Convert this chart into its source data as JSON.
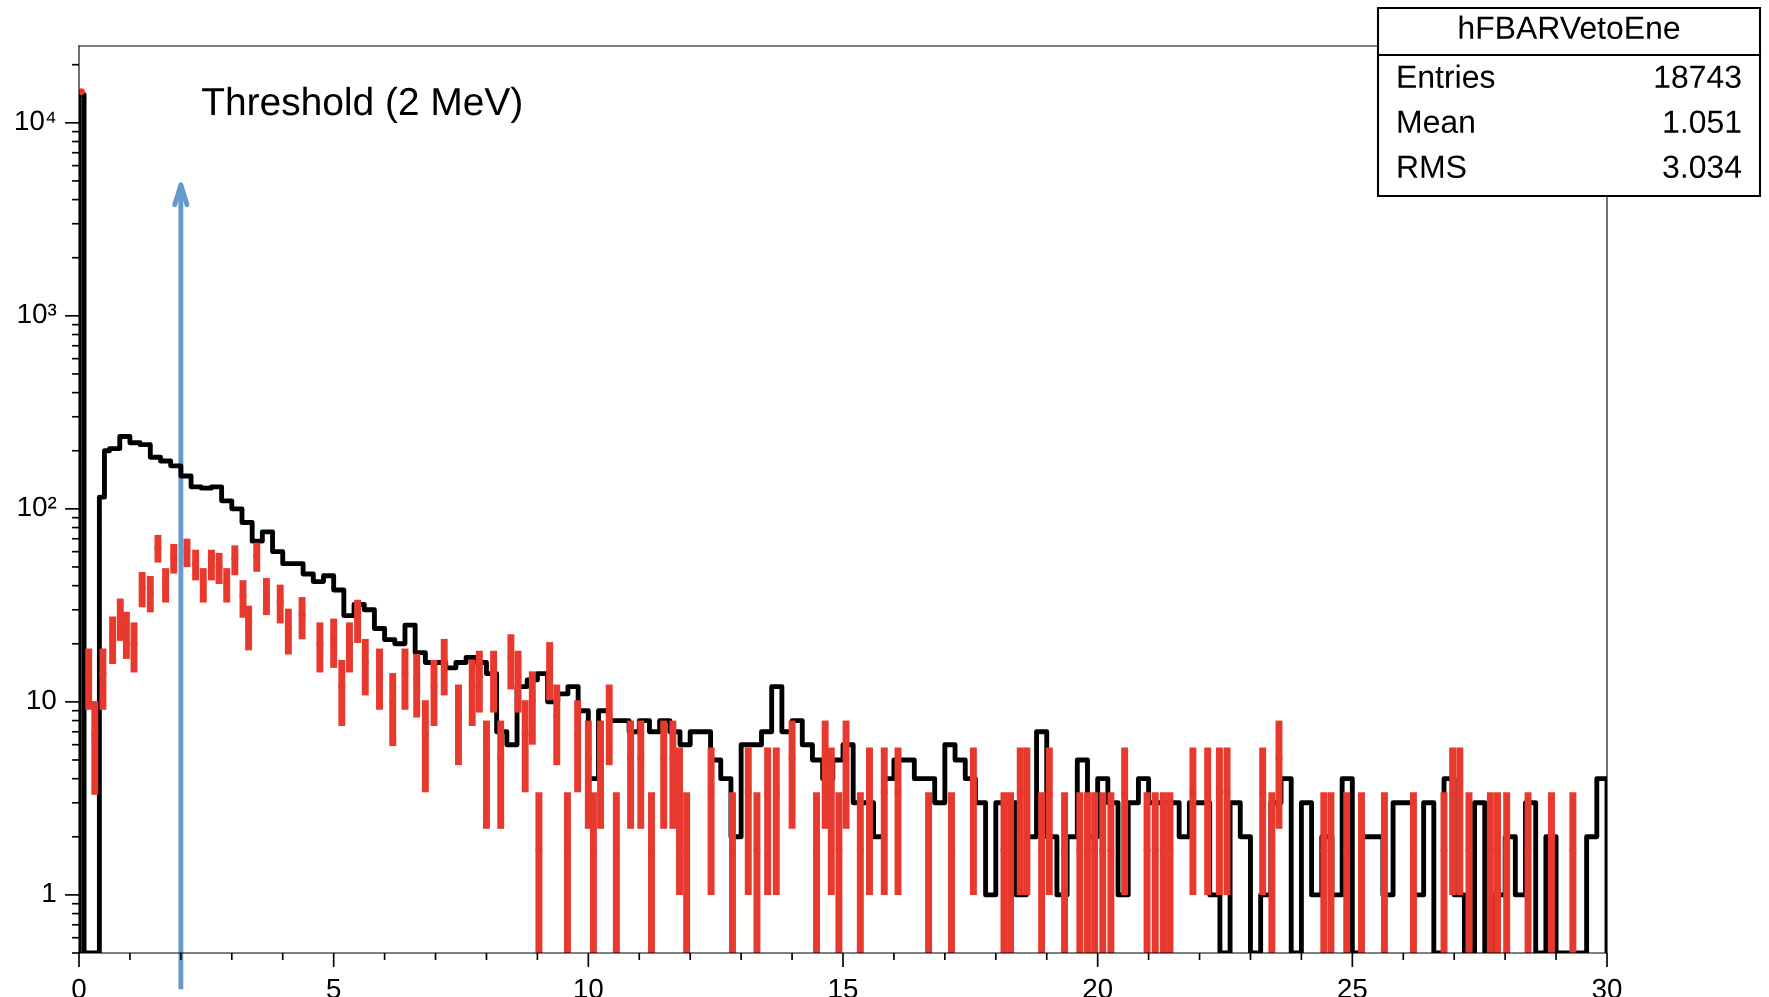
{
  "chart_data": {
    "type": "histogram",
    "bins": [
      0,
      0.1,
      0.2,
      0.3,
      0.4,
      0.5,
      0.6,
      0.7,
      0.8,
      0.9,
      1.0,
      1.2,
      1.4,
      1.6,
      1.8,
      2.0,
      2.2,
      2.4,
      2.6,
      2.8,
      3.0,
      3.2,
      3.4,
      3.6,
      3.8,
      4.0,
      4.2,
      4.4,
      4.6,
      4.8,
      5.0,
      5.2,
      5.4,
      5.6,
      5.8,
      6.0,
      6.2,
      6.4,
      6.6,
      6.8,
      7.0,
      7.2,
      7.4,
      7.6,
      7.8,
      8.0,
      8.2,
      8.4,
      8.6,
      8.8,
      9.0,
      9.2,
      9.4,
      9.6,
      9.8,
      10.0,
      10.2,
      10.4,
      10.6,
      10.8,
      11.0,
      11.2,
      11.4,
      11.6,
      11.8,
      12.0,
      12.2,
      12.4,
      12.6,
      12.8,
      13.0,
      13.2,
      13.4,
      13.6,
      13.8,
      14.0,
      14.2,
      14.4,
      14.6,
      14.8,
      15.0,
      15.2,
      15.4,
      15.6,
      15.8,
      16.0,
      16.2,
      16.4,
      16.6,
      16.8,
      17.0,
      17.2,
      17.4,
      17.6,
      17.8,
      18.0,
      18.2,
      18.4,
      18.6,
      18.8,
      19.0,
      19.2,
      19.4,
      19.6,
      19.8,
      20.0,
      20.2,
      20.4,
      20.6,
      20.8,
      21.0,
      21.2,
      21.4,
      21.6,
      21.8,
      22.0,
      22.2,
      22.4,
      22.6,
      22.8,
      23.0,
      23.2,
      23.4,
      23.6,
      23.8,
      24.0,
      24.2,
      24.4,
      24.6,
      24.8,
      25.0,
      25.2,
      25.4,
      25.6,
      25.8,
      26.0,
      26.2,
      26.4,
      26.6,
      26.8,
      27.0,
      27.2,
      27.4,
      27.6,
      27.8,
      28.0,
      28.2,
      28.4,
      28.6,
      28.8,
      29.0,
      29.2,
      29.4,
      29.6,
      29.8,
      30.0
    ],
    "series": [
      {
        "color": "#000000",
        "values": [
          14000,
          null,
          null,
          null,
          115,
          200,
          205,
          205,
          237,
          237,
          220,
          215,
          185,
          177,
          167,
          148,
          130,
          128,
          130,
          110,
          100,
          85,
          68,
          76,
          60,
          52,
          52,
          46,
          42,
          45,
          38,
          28,
          32,
          30,
          24,
          21,
          20,
          25,
          18,
          16,
          16,
          15,
          16,
          17,
          16,
          14,
          7,
          6,
          12,
          13,
          14,
          10,
          11,
          12,
          9,
          4,
          9,
          8,
          8,
          7,
          8,
          7,
          8,
          7,
          6,
          7,
          7,
          5,
          4,
          2,
          6,
          6,
          7,
          12,
          7,
          8,
          6,
          5,
          4,
          5,
          6,
          3,
          3,
          2,
          4,
          5,
          5,
          4,
          4,
          3,
          6,
          5,
          4,
          3,
          1,
          3,
          3,
          1,
          2,
          7,
          2,
          1,
          2,
          5,
          2,
          4,
          3,
          1,
          3,
          4,
          3,
          3,
          3,
          2,
          3,
          3,
          1,
          null,
          3,
          2,
          null,
          1,
          3,
          4,
          null,
          3,
          1,
          2,
          1,
          4,
          null,
          2,
          2,
          1,
          3,
          3,
          1,
          3,
          null,
          4,
          1,
          null,
          3,
          null,
          1,
          2,
          1,
          3,
          null,
          2,
          null,
          null,
          null,
          2,
          4
        ]
      },
      {
        "type": "scatter",
        "color": "#e8392f",
        "marker": "circle",
        "x": [
          0.05,
          0.19,
          0.31,
          0.47,
          0.66,
          0.81,
          0.93,
          1.08,
          1.24,
          1.4,
          1.55,
          1.7,
          1.86,
          2.12,
          2.29,
          2.44,
          2.6,
          2.75,
          2.9,
          3.06,
          3.22,
          3.33,
          3.49,
          3.68,
          3.95,
          4.11,
          4.38,
          4.73,
          5.0,
          5.16,
          5.31,
          5.47,
          5.62,
          5.9,
          6.16,
          6.4,
          6.63,
          6.8,
          6.97,
          7.17,
          7.45,
          7.72,
          7.86,
          8.0,
          8.14,
          8.28,
          8.48,
          8.62,
          8.76,
          8.9,
          9.03,
          9.24,
          9.38,
          9.59,
          9.79,
          10.0,
          10.1,
          10.24,
          10.41,
          10.55,
          10.83,
          11.03,
          11.24,
          11.48,
          11.66,
          11.79,
          11.93,
          12.41,
          12.83,
          13.14,
          13.31,
          13.52,
          13.69,
          14.0,
          14.48,
          14.65,
          14.77,
          14.92,
          15.06,
          15.34,
          15.52,
          15.81,
          16.08,
          16.68,
          17.13,
          17.56,
          18.16,
          18.29,
          18.48,
          18.61,
          18.9,
          19.05,
          19.35,
          19.65,
          19.8,
          19.94,
          20.1,
          20.26,
          20.53,
          20.97,
          21.13,
          21.29,
          21.42,
          21.87,
          22.16,
          22.39,
          22.54,
          23.24,
          23.42,
          23.56,
          24.44,
          24.58,
          24.89,
          25.18,
          25.63,
          26.2,
          26.8,
          26.97,
          27.11,
          27.29,
          27.71,
          27.85,
          28.03,
          28.45,
          28.91,
          29.33
        ],
        "values": [
          14500,
          14,
          6.7,
          14,
          21.7,
          27.5,
          23,
          20,
          39,
          37,
          63,
          41,
          56,
          60,
          52,
          41,
          52,
          50,
          41,
          55,
          35,
          25,
          57,
          36,
          33,
          24,
          28,
          20,
          21,
          12,
          20,
          27,
          16,
          14,
          10,
          14,
          13,
          6.8,
          12,
          16,
          8.5,
          12,
          13.6,
          5.1,
          13.6,
          5.1,
          17,
          13.6,
          6.8,
          10.2,
          1.7,
          15.3,
          8.5,
          1.7,
          6.8,
          5.1,
          1.7,
          5.1,
          8.5,
          1.7,
          5.1,
          5.1,
          1.7,
          5.1,
          5.1,
          3.4,
          1.7,
          3.4,
          1.7,
          3.4,
          1.7,
          3.4,
          3.4,
          5.1,
          1.7,
          5.1,
          3.4,
          1.7,
          5.1,
          1.7,
          3.4,
          3.4,
          3.4,
          1.7,
          1.7,
          3.4,
          1.7,
          1.7,
          3.4,
          3.4,
          1.7,
          3.4,
          1.7,
          1.7,
          1.7,
          1.7,
          1.7,
          1.7,
          3.4,
          1.7,
          1.7,
          1.7,
          1.7,
          3.4,
          3.4,
          3.4,
          3.4,
          3.4,
          1.7,
          5.1,
          1.7,
          1.7,
          1.7,
          1.7,
          1.7,
          1.7,
          1.7,
          3.4,
          3.4,
          1.7,
          1.7,
          1.7,
          1.7,
          1.7,
          1.7,
          1.7
        ],
        "errors": [
          null,
          4.9,
          3.4,
          4.9,
          6,
          6.8,
          6.3,
          5.8,
          8.1,
          7.9,
          10.3,
          8.3,
          9.8,
          10.1,
          9.4,
          8.3,
          9.4,
          9.2,
          8.3,
          9.7,
          7.7,
          6.5,
          9.8,
          7.8,
          7.5,
          6.4,
          6.9,
          5.8,
          6,
          4.5,
          5.8,
          6.8,
          5.2,
          4.9,
          4.1,
          4.9,
          4.7,
          3.4,
          4.5,
          5.2,
          3.8,
          4.5,
          4.8,
          2.9,
          4.8,
          2.9,
          5.4,
          4.8,
          3.4,
          4.2,
          [
            0.5,
            3.4
          ],
          5.1,
          3.8,
          [
            0.5,
            3.4
          ],
          3.4,
          2.9,
          [
            0.5,
            3.4
          ],
          2.9,
          3.8,
          [
            0.5,
            3.4
          ],
          2.9,
          2.9,
          [
            0.5,
            3.4
          ],
          2.9,
          2.9,
          2.4,
          [
            0.5,
            3.4
          ],
          2.4,
          [
            0.5,
            3.4
          ],
          2.4,
          [
            0.5,
            3.4
          ],
          2.4,
          2.4,
          2.9,
          [
            0.5,
            3.4
          ],
          2.9,
          2.4,
          [
            0.5,
            3.4
          ],
          2.9,
          [
            0.5,
            3.4
          ],
          2.4,
          2.4,
          2.4,
          [
            0.5,
            3.4
          ],
          [
            0.5,
            3.4
          ],
          2.4,
          [
            0.5,
            3.4
          ],
          [
            0.5,
            3.4
          ],
          2.4,
          2.4,
          [
            0.5,
            3.4
          ],
          2.4,
          [
            0.5,
            3.4
          ],
          [
            0.5,
            3.4
          ],
          [
            0.5,
            3.4
          ],
          [
            0.5,
            3.4
          ],
          [
            0.5,
            3.4
          ],
          [
            0.5,
            3.4
          ],
          2.4,
          [
            0.5,
            3.4
          ],
          [
            0.5,
            3.4
          ],
          [
            0.5,
            3.4
          ],
          [
            0.5,
            3.4
          ],
          2.4,
          2.4,
          2.4,
          2.4,
          2.4,
          [
            0.5,
            3.4
          ],
          2.9,
          [
            0.5,
            3.4
          ],
          [
            0.5,
            3.4
          ],
          [
            0.5,
            3.4
          ],
          [
            0.5,
            3.4
          ],
          [
            0.5,
            3.4
          ],
          [
            0.5,
            3.4
          ],
          [
            0.5,
            3.4
          ],
          2.4,
          2.4,
          [
            0.5,
            3.4
          ],
          [
            0.5,
            3.4
          ],
          [
            0.5,
            3.4
          ],
          [
            0.5,
            3.4
          ],
          [
            0.5,
            3.4
          ],
          [
            0.5,
            3.4
          ],
          [
            0.5,
            3.4
          ]
        ]
      }
    ],
    "log": "y",
    "xlim": [
      0,
      30
    ],
    "xticks": [
      0,
      5,
      10,
      15,
      20,
      25,
      30
    ],
    "ylim": [
      0.5,
      25000
    ],
    "yticks": [
      1,
      10,
      {
        "value": 100,
        "label": "10²"
      },
      {
        "value": 1000,
        "label": "10³"
      },
      {
        "value": 10000,
        "label": "10⁴"
      }
    ],
    "ref_lines": [
      {
        "axis": "x",
        "value": 2,
        "label": "Threshold (2 MeV)",
        "color": "#6699cc"
      }
    ],
    "annotations": [
      "hFBARVetoEne",
      "Entries",
      "18743",
      "Mean",
      "1.051",
      "RMS",
      "3.034"
    ]
  }
}
